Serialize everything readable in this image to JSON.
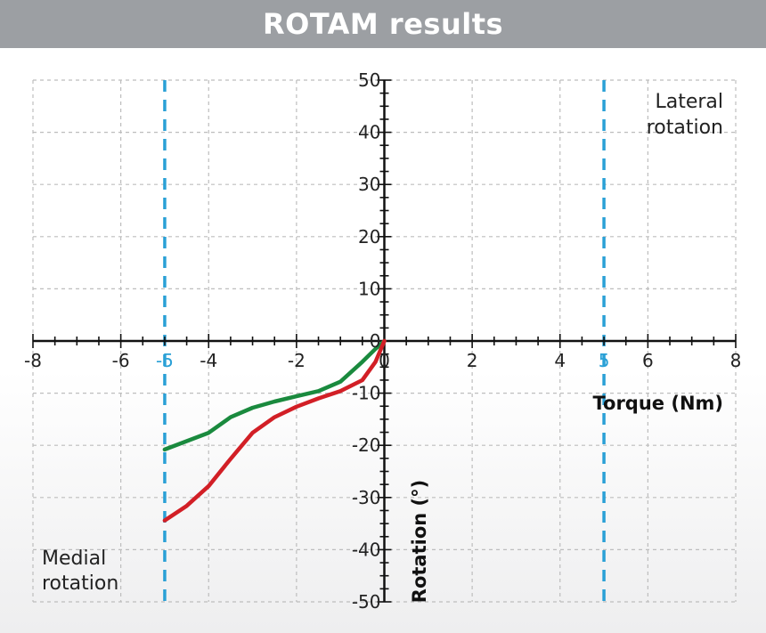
{
  "title": "ROTAM results",
  "colors": {
    "banner": "#9c9fa3",
    "series_green": "#1a8a3e",
    "series_red": "#d21f26",
    "limit_line": "#2aa0d6",
    "grid": "#bdbdbd",
    "axis": "#111111"
  },
  "chart_data": {
    "type": "line",
    "xlabel": "Torque (Nm)",
    "ylabel": "Rotation (°)",
    "xlim": [
      -8,
      8
    ],
    "ylim": [
      -50,
      50
    ],
    "grid": true,
    "x_ticks": [
      -8,
      -6,
      -4,
      -2,
      0,
      2,
      4,
      6,
      8
    ],
    "y_ticks": [
      50,
      40,
      30,
      20,
      10,
      0,
      -10,
      -20,
      -30,
      -40,
      -50
    ],
    "limit_lines": [
      {
        "x": -5,
        "label": "-5"
      },
      {
        "x": 5,
        "label": "5"
      }
    ],
    "annotations": {
      "lateral": [
        "Lateral",
        "rotation"
      ],
      "medial": [
        "Medial",
        "rotation"
      ]
    },
    "series": [
      {
        "color": "#1a8a3e",
        "x": [
          0,
          -0.2,
          -0.5,
          -1.0,
          -1.5,
          -2.0,
          -2.5,
          -3.0,
          -3.5,
          -4.0,
          -4.5,
          -5.0
        ],
        "y": [
          0,
          -1.5,
          -4.0,
          -7.8,
          -9.6,
          -10.6,
          -11.6,
          -12.8,
          -14.6,
          -17.6,
          -19.2,
          -20.8
        ]
      },
      {
        "color": "#d21f26",
        "x": [
          0,
          -0.2,
          -0.5,
          -1.0,
          -1.5,
          -2.0,
          -2.5,
          -3.0,
          -3.5,
          -4.0,
          -4.5,
          -5.0
        ],
        "y": [
          0,
          -4.0,
          -7.5,
          -9.6,
          -11.0,
          -12.6,
          -14.6,
          -17.6,
          -22.6,
          -27.8,
          -31.6,
          -34.4
        ]
      }
    ]
  }
}
